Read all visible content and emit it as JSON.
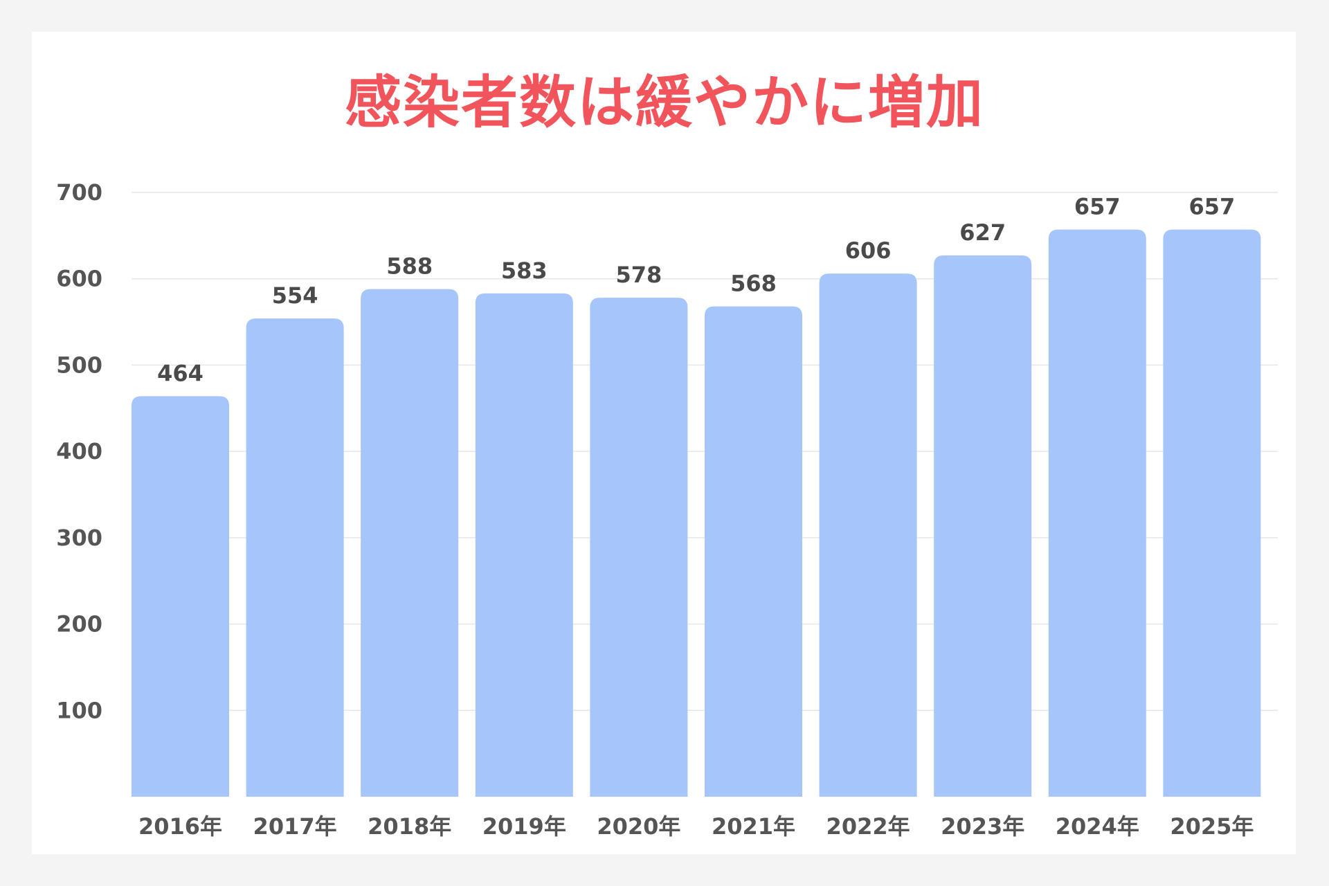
{
  "chart_data": {
    "type": "bar",
    "title": "感染者数は緩やかに増加",
    "categories": [
      "2016年",
      "2017年",
      "2018年",
      "2019年",
      "2020年",
      "2021年",
      "2022年",
      "2023年",
      "2024年",
      "2025年"
    ],
    "values": [
      464,
      554,
      588,
      583,
      578,
      568,
      606,
      627,
      657,
      657
    ],
    "y_ticks": [
      "100",
      "200",
      "300",
      "400",
      "500",
      "600",
      "700"
    ],
    "ylim": [
      0,
      700
    ],
    "grid": true,
    "data_labels": true,
    "xlabel": "",
    "ylabel": "",
    "colors": {
      "bar": "#a6c5fa",
      "title": "#f2545b",
      "grid": "#e6e6e6",
      "text": "#555555"
    }
  }
}
